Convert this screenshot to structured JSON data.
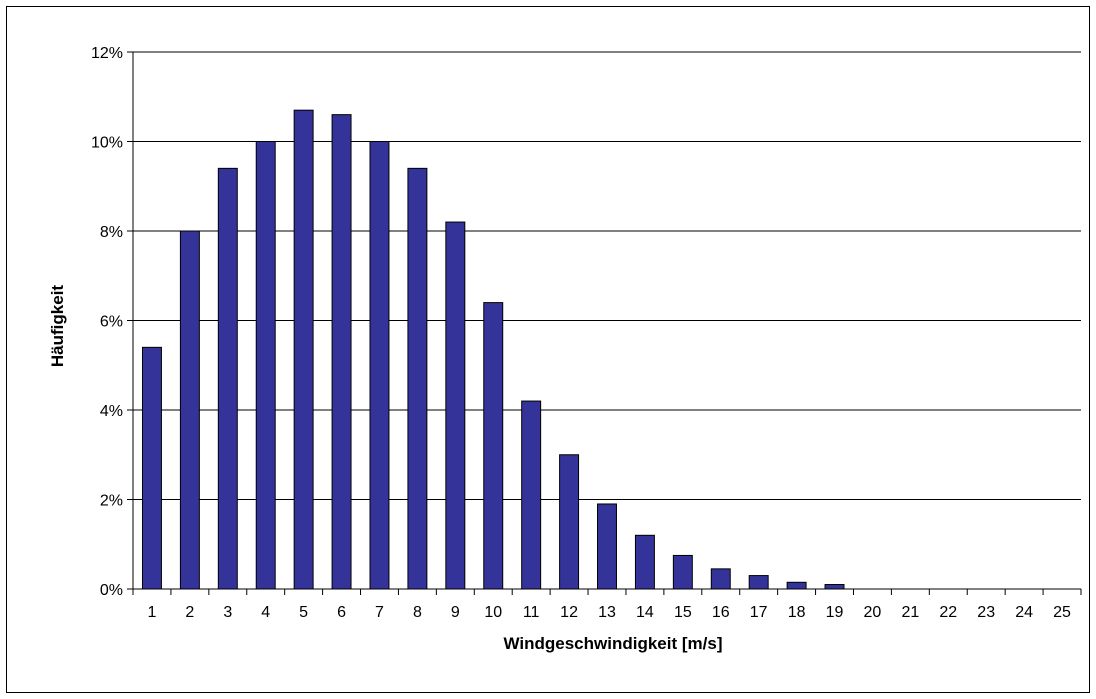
{
  "chart_data": {
    "type": "bar",
    "title": "",
    "xlabel": "Windgeschwindigkeit [m/s]",
    "ylabel": "Häufigkeit",
    "categories": [
      "1",
      "2",
      "3",
      "4",
      "5",
      "6",
      "7",
      "8",
      "9",
      "10",
      "11",
      "12",
      "13",
      "14",
      "15",
      "16",
      "17",
      "18",
      "19",
      "20",
      "21",
      "22",
      "23",
      "24",
      "25"
    ],
    "values": [
      5.4,
      8.0,
      9.4,
      10.0,
      10.7,
      10.6,
      10.0,
      9.4,
      8.2,
      6.4,
      4.2,
      3.0,
      1.9,
      1.2,
      0.75,
      0.45,
      0.3,
      0.15,
      0.1,
      0,
      0,
      0,
      0,
      0,
      0
    ],
    "ylim": [
      0,
      12
    ],
    "yticks": [
      0,
      2,
      4,
      6,
      8,
      10,
      12
    ],
    "ytick_labels": [
      "0%",
      "2%",
      "4%",
      "6%",
      "8%",
      "10%",
      "12%"
    ],
    "value_unit": "%",
    "grid": "horizontal",
    "legend": "none",
    "colors": {
      "bar_fill": "#333399",
      "bar_stroke": "#000000",
      "gridline": "#000000",
      "background": "#ffffff"
    }
  }
}
